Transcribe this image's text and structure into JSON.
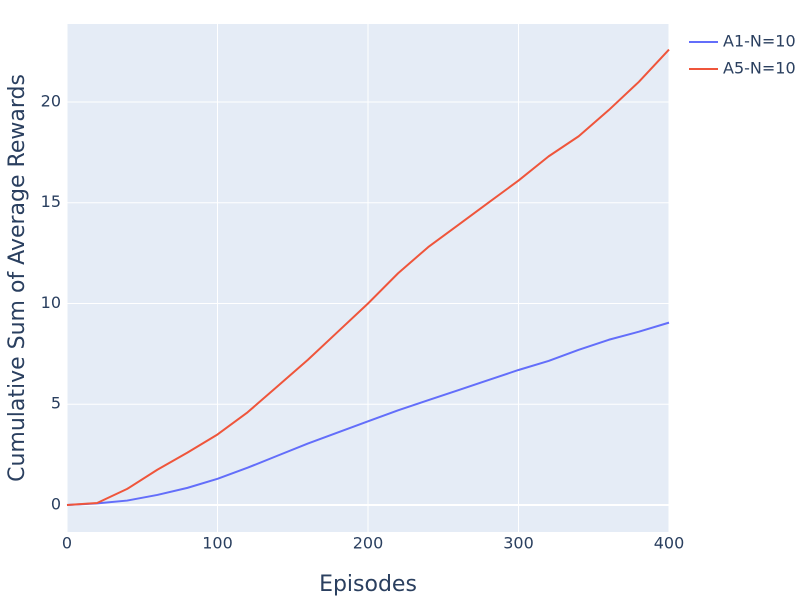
{
  "chart_data": {
    "type": "line",
    "x_label": "Episodes",
    "y_label": "Cumulative Sum of Average Rewards",
    "x": [
      0,
      20,
      40,
      60,
      80,
      100,
      120,
      140,
      160,
      180,
      200,
      220,
      240,
      260,
      280,
      300,
      320,
      340,
      360,
      380,
      400
    ],
    "series": [
      {
        "name": "A1-N=10",
        "color": "#636efa",
        "values": [
          0,
          0.08,
          0.22,
          0.5,
          0.85,
          1.3,
          1.85,
          2.45,
          3.05,
          3.6,
          4.15,
          4.7,
          5.2,
          5.7,
          6.2,
          6.7,
          7.15,
          7.7,
          8.2,
          8.6,
          9.05
        ]
      },
      {
        "name": "A5-N=10",
        "color": "#ef553b",
        "values": [
          0,
          0.1,
          0.8,
          1.75,
          2.6,
          3.5,
          4.6,
          5.9,
          7.2,
          8.6,
          10.0,
          11.5,
          12.8,
          13.9,
          15.0,
          16.1,
          17.3,
          18.3,
          19.6,
          21.0,
          22.6
        ]
      }
    ],
    "xlim": [
      0,
      400
    ],
    "xticks": [
      0,
      100,
      200,
      300,
      400
    ],
    "ylim": [
      -1.34,
      23.87
    ],
    "yticks": [
      0,
      5,
      10,
      15,
      20
    ],
    "grid": true,
    "legend": "outside-top-right"
  }
}
